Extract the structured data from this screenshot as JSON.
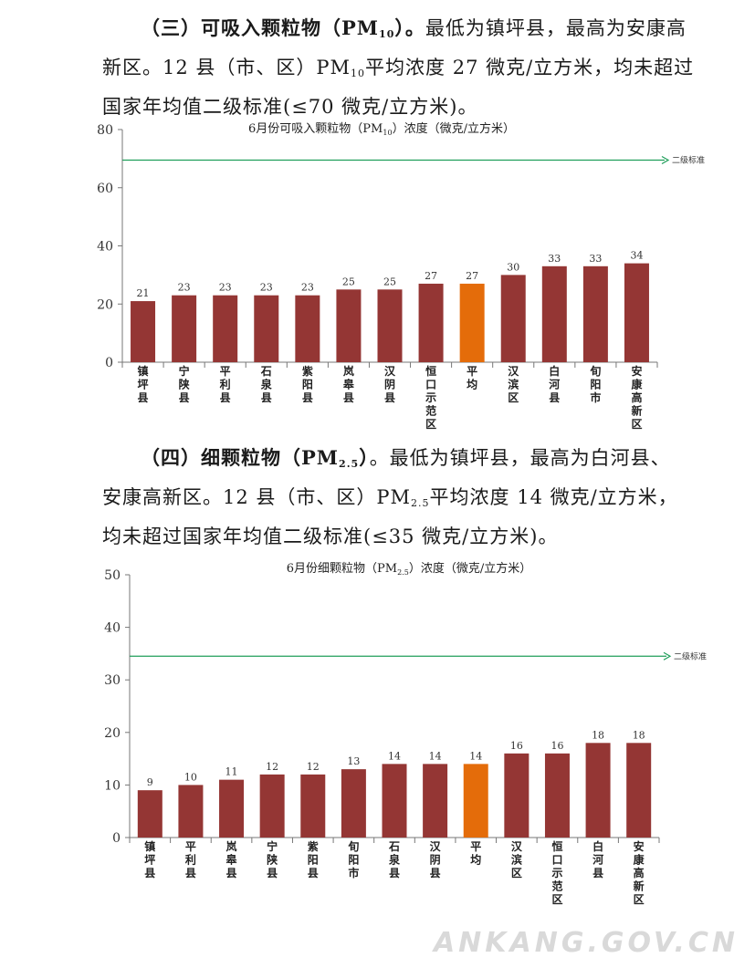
{
  "sections": [
    {
      "heading_prefix": "（三）可吸入颗粒物（PM",
      "heading_sub": "10",
      "heading_suffix": "）。",
      "line1_rest": "最低为镇坪县，最高为安康高",
      "line2_a": "新区。12 县（市、区）PM",
      "line2_sub": "10",
      "line2_b": "平均浓度 27 微克/立方米，均未超过",
      "line3": "国家年均值二级标准(≤70 微克/立方米)。"
    },
    {
      "heading_prefix": "（四）细颗粒物（PM",
      "heading_sub": "2.5",
      "heading_suffix": "）",
      "line1_rest": "。最低为镇坪县，最高为白河县、",
      "line2_a": "安康高新区。12 县（市、区）PM",
      "line2_sub": "2.5",
      "line2_b": "平均浓度 14 微克/立方米，",
      "line3": "均未超过国家年均值二级标准(≤35 微克/立方米)。"
    }
  ],
  "chart_data": [
    {
      "type": "bar",
      "title_prefix": "6月份可吸入颗粒物（PM",
      "title_sub": "10",
      "title_suffix": "）浓度（微克/立方米）",
      "categories": [
        "镇坪县",
        "宁陕县",
        "平利县",
        "石泉县",
        "紫阳县",
        "岚皋县",
        "汉阴县",
        "恒口示范区",
        "平均",
        "汉滨区",
        "白河县",
        "旬阳市",
        "安康高新区"
      ],
      "values": [
        21,
        23,
        23,
        23,
        23,
        25,
        25,
        27,
        27,
        30,
        33,
        33,
        34
      ],
      "highlight_category": "平均",
      "ylim": [
        0,
        80
      ],
      "yticks": [
        0,
        20,
        40,
        60,
        80
      ],
      "standard_value": 69.5,
      "standard_label": "二级标准",
      "bar_color": "#943634",
      "highlight_color": "#e46c0a",
      "line_color": "#1f9e5a"
    },
    {
      "type": "bar",
      "title_prefix": "6月份细颗粒物（PM",
      "title_sub": "2.5",
      "title_suffix": "）浓度（微克/立方米）",
      "categories": [
        "镇坪县",
        "平利县",
        "岚皋县",
        "宁陕县",
        "紫阳县",
        "旬阳市",
        "石泉县",
        "汉阴县",
        "平均",
        "汉滨区",
        "恒口示范区",
        "白河县",
        "安康高新区"
      ],
      "values": [
        9,
        10,
        11,
        12,
        12,
        13,
        14,
        14,
        14,
        16,
        16,
        18,
        18
      ],
      "highlight_category": "平均",
      "ylim": [
        0,
        50
      ],
      "yticks": [
        0,
        10,
        20,
        30,
        40,
        50
      ],
      "standard_value": 34.5,
      "standard_label": "二级标准",
      "bar_color": "#943634",
      "highlight_color": "#e46c0a",
      "line_color": "#1f9e5a"
    }
  ],
  "watermark": "ANKANG.GOV.CN"
}
